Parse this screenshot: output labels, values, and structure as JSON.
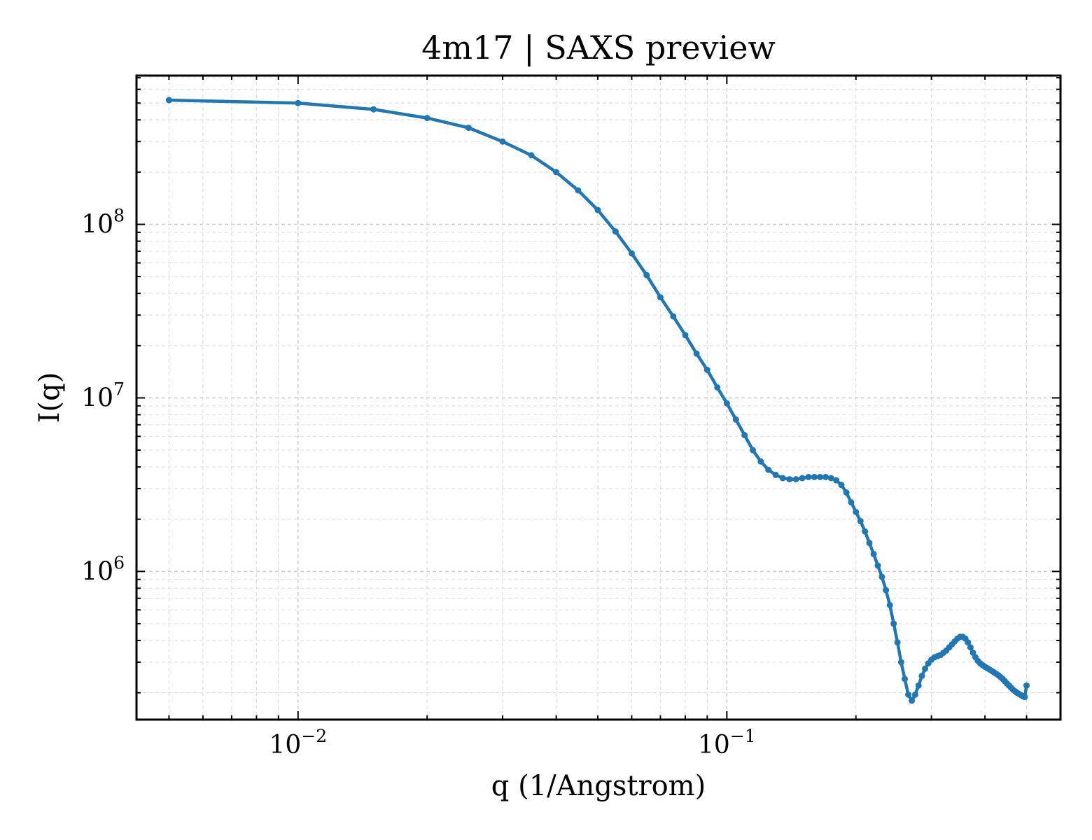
{
  "chart_data": {
    "type": "line",
    "title": "4m17 | SAXS preview",
    "xlabel": "q (1/Angstrom)",
    "ylabel": "I(q)",
    "xscale": "log",
    "yscale": "log",
    "xlim": [
      0.0042,
      0.6
    ],
    "ylim": [
      140000,
      720000000
    ],
    "grid": true,
    "grid_style": "dashed, major and minor",
    "line_color": "#1f77b4",
    "markers": true,
    "x_ticks": [
      {
        "value": 0.01,
        "label": "10",
        "exponent": "−2"
      },
      {
        "value": 0.1,
        "label": "10",
        "exponent": "−1"
      }
    ],
    "y_ticks": [
      {
        "value": 1000000,
        "label": "10",
        "exponent": "6"
      },
      {
        "value": 10000000,
        "label": "10",
        "exponent": "7"
      },
      {
        "value": 100000000,
        "label": "10",
        "exponent": "8"
      }
    ],
    "series": [
      {
        "x": [
          0.005,
          0.01,
          0.015,
          0.02,
          0.025,
          0.03,
          0.035,
          0.04,
          0.045,
          0.05,
          0.055,
          0.06,
          0.065,
          0.07,
          0.075,
          0.08,
          0.085,
          0.09,
          0.095,
          0.1,
          0.105,
          0.11,
          0.115,
          0.12,
          0.125,
          0.13,
          0.135,
          0.14,
          0.145,
          0.15,
          0.155,
          0.16,
          0.165,
          0.17,
          0.175,
          0.18,
          0.185,
          0.19,
          0.195,
          0.2,
          0.205,
          0.21,
          0.215,
          0.22,
          0.225,
          0.23,
          0.235,
          0.24,
          0.245,
          0.25,
          0.255,
          0.26,
          0.265,
          0.27,
          0.275,
          0.28,
          0.285,
          0.29,
          0.295,
          0.3,
          0.305,
          0.31,
          0.315,
          0.32,
          0.325,
          0.33,
          0.335,
          0.34,
          0.345,
          0.35,
          0.355,
          0.36,
          0.365,
          0.37,
          0.375,
          0.38,
          0.385,
          0.39,
          0.395,
          0.4,
          0.405,
          0.41,
          0.415,
          0.42,
          0.425,
          0.43,
          0.435,
          0.44,
          0.445,
          0.45,
          0.455,
          0.46,
          0.465,
          0.47,
          0.475,
          0.48,
          0.485,
          0.49,
          0.495,
          0.5
        ],
        "y": [
          520000000,
          500000000,
          460000000,
          410000000,
          360000000,
          300000000,
          250000000,
          200000000,
          157000000,
          121000000,
          91000000,
          68000000,
          51000000,
          38000000,
          29500000,
          23000000,
          18000000,
          14500000,
          11500000,
          9300000,
          7500000,
          6100000,
          5000000,
          4300000,
          3850000,
          3600000,
          3450000,
          3400000,
          3400000,
          3450000,
          3500000,
          3500000,
          3500000,
          3500000,
          3450000,
          3350000,
          3150000,
          2850000,
          2500000,
          2200000,
          1950000,
          1700000,
          1460000,
          1260000,
          1080000,
          930000,
          780000,
          640000,
          500000,
          390000,
          300000,
          240000,
          195000,
          180000,
          195000,
          220000,
          250000,
          275000,
          295000,
          310000,
          320000,
          325000,
          330000,
          340000,
          350000,
          365000,
          380000,
          395000,
          410000,
          420000,
          420000,
          410000,
          390000,
          365000,
          340000,
          320000,
          305000,
          295000,
          288000,
          282000,
          277000,
          272000,
          267000,
          262000,
          257000,
          252000,
          246000,
          240000,
          233000,
          226000,
          220000,
          214000,
          208000,
          204000,
          200000,
          197000,
          194000,
          191000,
          189000,
          220000
        ]
      }
    ]
  }
}
